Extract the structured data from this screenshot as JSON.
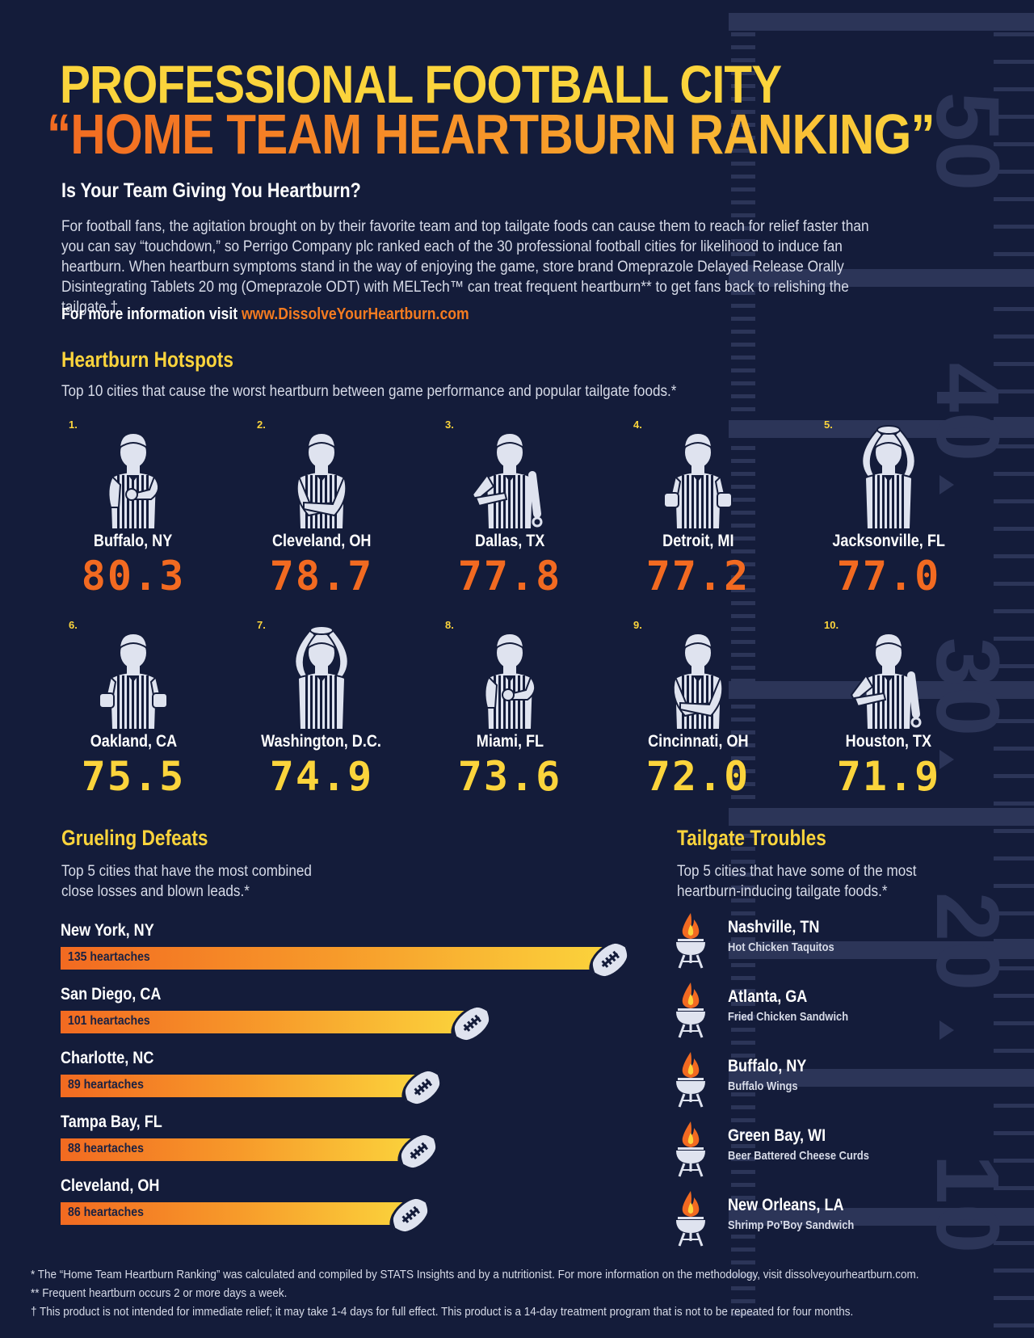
{
  "header": {
    "title_line1": "PROFESSIONAL FOOTBALL CITY",
    "title_line2": "“HOME TEAM HEARTBURN RANKING”"
  },
  "intro": {
    "heading": "Is Your Team Giving You Heartburn?",
    "body": "For football fans, the agitation brought on by their favorite team and top tailgate foods can cause them to reach for relief faster than you can say “touchdown,” so Perrigo Company plc ranked each of the 30 professional football cities for likelihood to induce fan heartburn. When heartburn symptoms stand in the way of enjoying the game, store brand Omeprazole Delayed Release Orally Disintegrating Tablets 20 mg (Omeprazole ODT) with MELTech™ can treat frequent heartburn** to get fans back to relishing the tailgate.†",
    "more_info_label": "For more information visit",
    "more_info_url": "www.DissolveYourHeartburn.com"
  },
  "field_markings": {
    "yard_numbers": [
      "50",
      "40",
      "30",
      "20",
      "10"
    ]
  },
  "hotspots": {
    "title": "Heartburn Hotspots",
    "description": "Top 10 cities that cause the worst heartburn between game performance and popular tailgate foods.*",
    "items": [
      {
        "rank": "1.",
        "city": "Buffalo, NY",
        "score": "80.3",
        "pose": "chest"
      },
      {
        "rank": "2.",
        "city": "Cleveland, OH",
        "score": "78.7",
        "pose": "crossed"
      },
      {
        "rank": "3.",
        "city": "Dallas, TX",
        "score": "77.8",
        "pose": "whistle"
      },
      {
        "rank": "4.",
        "city": "Detroit, MI",
        "score": "77.2",
        "pose": "fists"
      },
      {
        "rank": "5.",
        "city": "Jacksonville, FL",
        "score": "77.0",
        "pose": "overhead"
      },
      {
        "rank": "6.",
        "city": "Oakland, CA",
        "score": "75.5",
        "pose": "fists"
      },
      {
        "rank": "7.",
        "city": "Washington, D.C.",
        "score": "74.9",
        "pose": "overhead"
      },
      {
        "rank": "8.",
        "city": "Miami, FL",
        "score": "73.6",
        "pose": "chest"
      },
      {
        "rank": "9.",
        "city": "Cincinnati, OH",
        "score": "72.0",
        "pose": "crossed"
      },
      {
        "rank": "10.",
        "city": "Houston, TX",
        "score": "71.9",
        "pose": "whistle"
      }
    ],
    "score_colors": {
      "top5": "#f26a21",
      "next5": "#fbd43c"
    }
  },
  "defeats": {
    "title": "Grueling Defeats",
    "description": "Top 5 cities that have the most combined close losses and blown leads.*",
    "items": [
      {
        "city": "New York, NY",
        "value": 135,
        "label": "135 heartaches"
      },
      {
        "city": "San Diego, CA",
        "value": 101,
        "label": "101 heartaches"
      },
      {
        "city": "Charlotte, NC",
        "value": 89,
        "label": "89 heartaches"
      },
      {
        "city": "Tampa Bay, FL",
        "value": 88,
        "label": "88 heartaches"
      },
      {
        "city": "Cleveland, OH",
        "value": 86,
        "label": "86 heartaches"
      }
    ]
  },
  "tailgate": {
    "title": "Tailgate Troubles",
    "description": "Top 5 cities that have some of the most heartburn-inducing tailgate foods.*",
    "items": [
      {
        "city": "Nashville, TN",
        "food": "Hot Chicken Taquitos"
      },
      {
        "city": "Atlanta, GA",
        "food": "Fried Chicken Sandwich"
      },
      {
        "city": "Buffalo, NY",
        "food": "Buffalo Wings"
      },
      {
        "city": "Green Bay, WI",
        "food": "Beer Battered Cheese Curds"
      },
      {
        "city": "New Orleans, LA",
        "food": "Shrimp Po’Boy Sandwich"
      }
    ]
  },
  "footnotes": [
    "* The “Home Team Heartburn Ranking” was calculated and compiled by STATS Insights and by a nutritionist. For more information on the methodology, visit dissolveyourheartburn.com.",
    "** Frequent heartburn occurs 2 or more days a week.",
    "† This product is not intended for immediate relief; it may take 1-4 days for full effect. This product is a 14-day treatment program that is not to be repeated for four months."
  ]
}
